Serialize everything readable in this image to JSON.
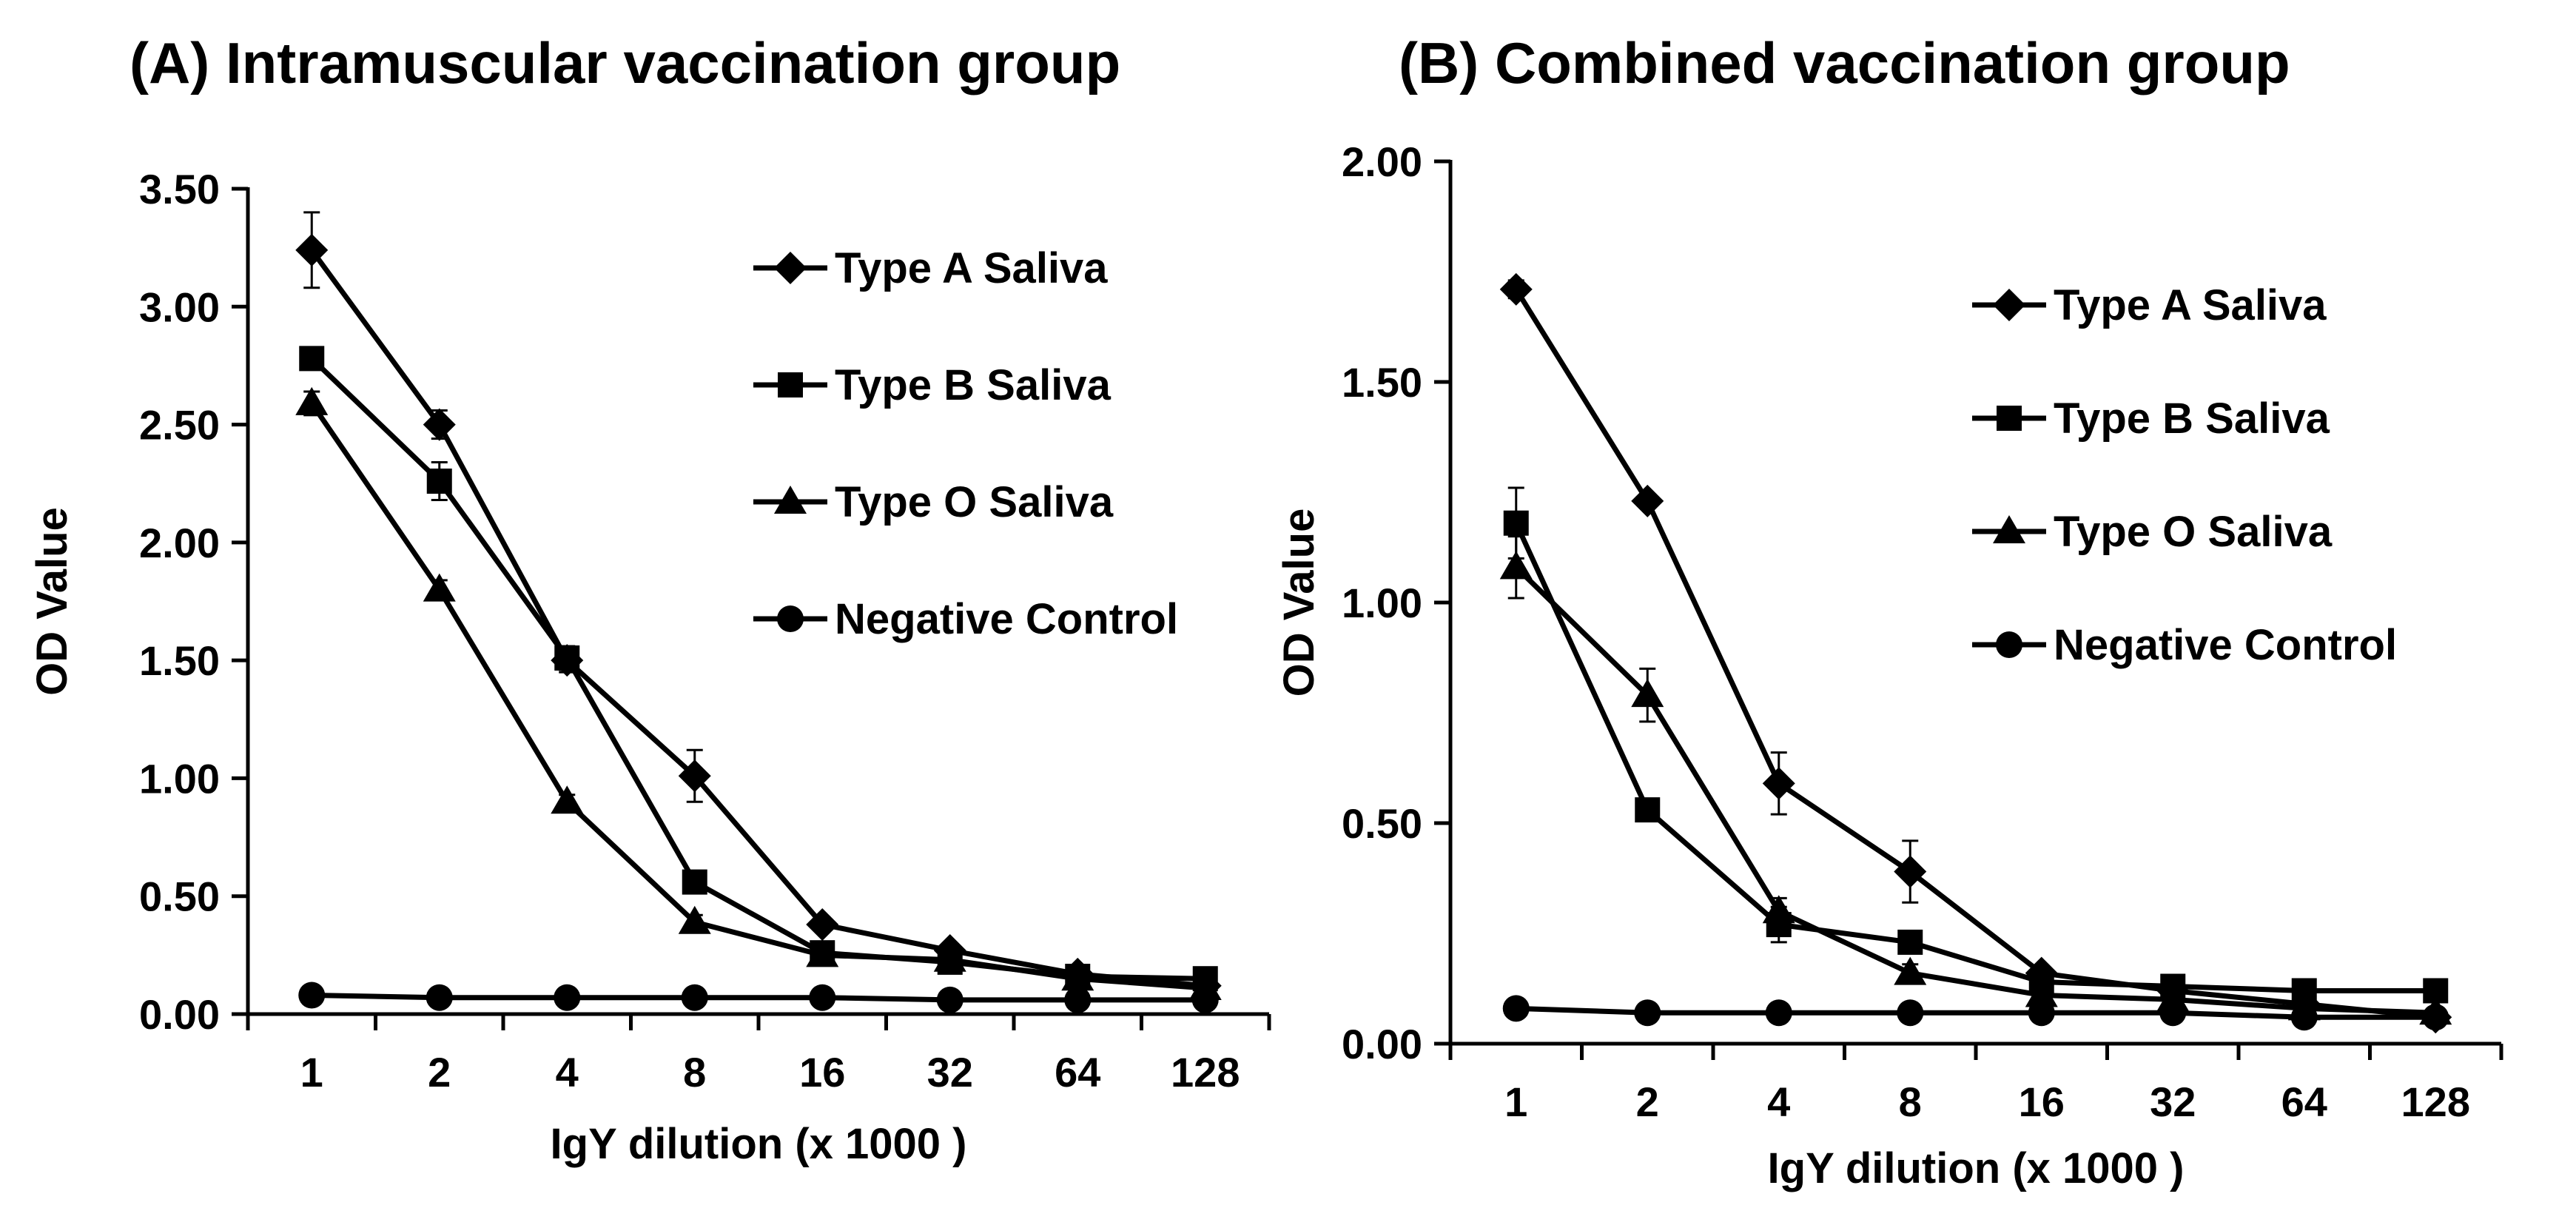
{
  "figure": {
    "colors": {
      "line": "#000000",
      "background": "#ffffff"
    },
    "legend_placement": "upper-right inside plot"
  },
  "chart_data": [
    {
      "panel": "A",
      "type": "line",
      "title": "(A) Intramuscular vaccination group",
      "xlabel": "IgY dilution (x 1000 )",
      "ylabel": "OD Value",
      "categories": [
        "1",
        "2",
        "4",
        "8",
        "16",
        "32",
        "64",
        "128"
      ],
      "ylim": [
        0,
        3.5
      ],
      "yticks": [
        "0.00",
        "0.50",
        "1.00",
        "1.50",
        "2.00",
        "2.50",
        "3.00",
        "3.50"
      ],
      "grid": false,
      "series": [
        {
          "name": "Type A Saliva",
          "marker": "diamond",
          "values": [
            3.24,
            2.5,
            1.5,
            1.01,
            0.38,
            0.27,
            0.17,
            0.12
          ],
          "errors": [
            0.16,
            0.06,
            0.05,
            0.11,
            0.03,
            0.03,
            0.03,
            0.02
          ]
        },
        {
          "name": "Type B Saliva",
          "marker": "square",
          "values": [
            2.78,
            2.26,
            1.51,
            0.56,
            0.26,
            0.22,
            0.16,
            0.15
          ],
          "errors": [
            0.04,
            0.08,
            0.05,
            0.04,
            0.02,
            0.02,
            0.04,
            0.02
          ]
        },
        {
          "name": "Type O Saliva",
          "marker": "triangle",
          "values": [
            2.59,
            1.8,
            0.9,
            0.39,
            0.25,
            0.23,
            0.15,
            0.11
          ],
          "errors": [
            0.05,
            0.04,
            0.03,
            0.03,
            0.02,
            0.02,
            0.02,
            0.02
          ]
        },
        {
          "name": "Negative Control",
          "marker": "circle",
          "values": [
            0.08,
            0.07,
            0.07,
            0.07,
            0.07,
            0.06,
            0.06,
            0.06
          ],
          "errors": [
            0,
            0,
            0,
            0,
            0,
            0,
            0,
            0
          ]
        }
      ]
    },
    {
      "panel": "B",
      "type": "line",
      "title": "(B) Combined vaccination group",
      "xlabel": "IgY dilution (x 1000 )",
      "ylabel": "OD Value",
      "categories": [
        "1",
        "2",
        "4",
        "8",
        "16",
        "32",
        "64",
        "128"
      ],
      "ylim": [
        0,
        2.0
      ],
      "yticks": [
        "0.00",
        "0.50",
        "1.00",
        "1.50",
        "2.00"
      ],
      "grid": false,
      "series": [
        {
          "name": "Type A Saliva",
          "marker": "diamond",
          "values": [
            1.71,
            1.23,
            0.59,
            0.39,
            0.16,
            0.12,
            0.09,
            0.06
          ],
          "errors": [
            0.02,
            0.01,
            0.07,
            0.07,
            0.01,
            0.01,
            0.01,
            0.01
          ]
        },
        {
          "name": "Type B Saliva",
          "marker": "square",
          "values": [
            1.18,
            0.53,
            0.27,
            0.23,
            0.14,
            0.13,
            0.12,
            0.12
          ],
          "errors": [
            0.08,
            0.02,
            0.04,
            0.02,
            0.01,
            0.01,
            0.01,
            0.01
          ]
        },
        {
          "name": "Type O Saliva",
          "marker": "triangle",
          "values": [
            1.08,
            0.79,
            0.3,
            0.16,
            0.11,
            0.1,
            0.08,
            0.07
          ],
          "errors": [
            0.07,
            0.06,
            0.03,
            0.02,
            0.01,
            0.01,
            0.01,
            0.01
          ]
        },
        {
          "name": "Negative Control",
          "marker": "circle",
          "values": [
            0.08,
            0.07,
            0.07,
            0.07,
            0.07,
            0.07,
            0.06,
            0.06
          ],
          "errors": [
            0,
            0,
            0,
            0,
            0,
            0,
            0,
            0
          ]
        }
      ]
    }
  ]
}
